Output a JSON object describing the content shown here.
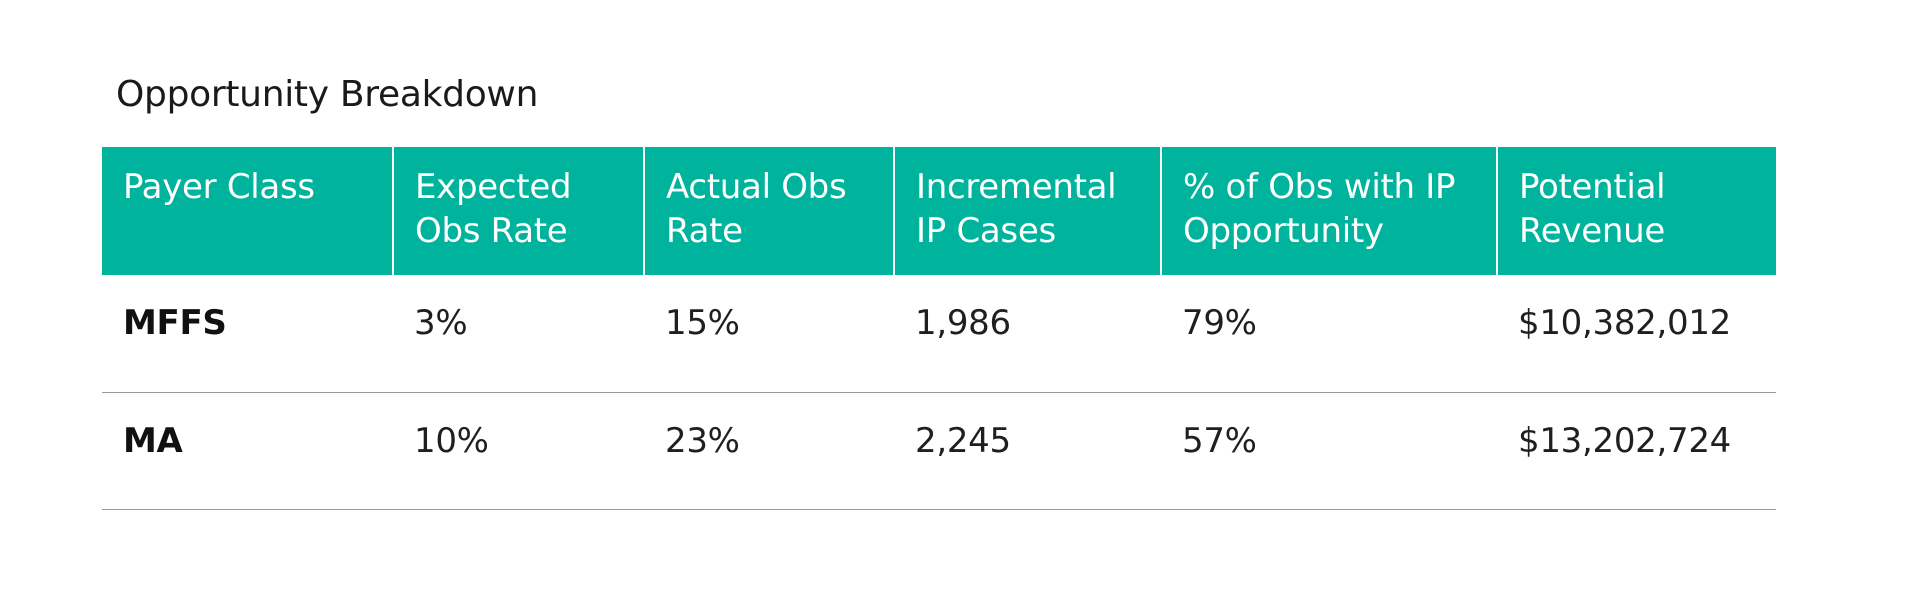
{
  "title": "Opportunity Breakdown",
  "table": {
    "headers": [
      [
        "Payer Class",
        ""
      ],
      [
        "Expected",
        "Obs Rate"
      ],
      [
        "Actual Obs",
        "Rate"
      ],
      [
        "Incremental",
        "IP Cases"
      ],
      [
        "% of Obs with IP",
        "Opportunity"
      ],
      [
        "Potential",
        "Revenue"
      ]
    ],
    "rows": [
      [
        "MFFS",
        "3%",
        "15%",
        "1,986",
        "79%",
        "$10,382,012"
      ],
      [
        "MA",
        "10%",
        "23%",
        "2,245",
        "57%",
        "$13,202,724"
      ]
    ]
  },
  "colors": {
    "header_bg": "#00b39c",
    "header_text": "#ffffff",
    "row_divider": "#9a9a9a"
  }
}
